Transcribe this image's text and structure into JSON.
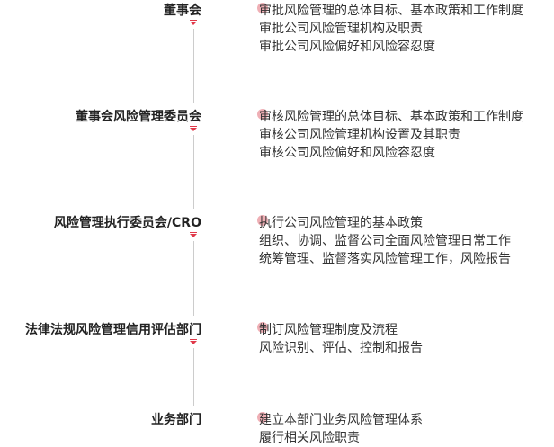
{
  "levels": [
    {
      "name": "董事会",
      "duties": [
        "审批风险管理的总体目标、基本政策和工作制度",
        "审批公司风险管理机构及职责",
        "审批公司风险偏好和风险容忍度"
      ]
    },
    {
      "name": "董事会风险管理委员会",
      "duties": [
        "审核风险管理的总体目标、基本政策和工作制度",
        "审核公司风险管理机构设置及其职责",
        "审核公司风险偏好和风险容忍度"
      ]
    },
    {
      "name": "风险管理执行委员会/CRO",
      "duties": [
        "执行公司风险管理的基本政策",
        "组织、协调、监督公司全面风险管理日常工作",
        "统筹管理、监督落实风险管理工作，风险报告"
      ]
    },
    {
      "name": "法律法规风险管理信用评估部门",
      "duties": [
        "制订风险管理制度及流程",
        "风险识别、评估、控制和报告"
      ]
    },
    {
      "name": "业务部门",
      "duties": [
        "建立本部门业务风险管理体系",
        "履行相关风险职责"
      ]
    }
  ]
}
